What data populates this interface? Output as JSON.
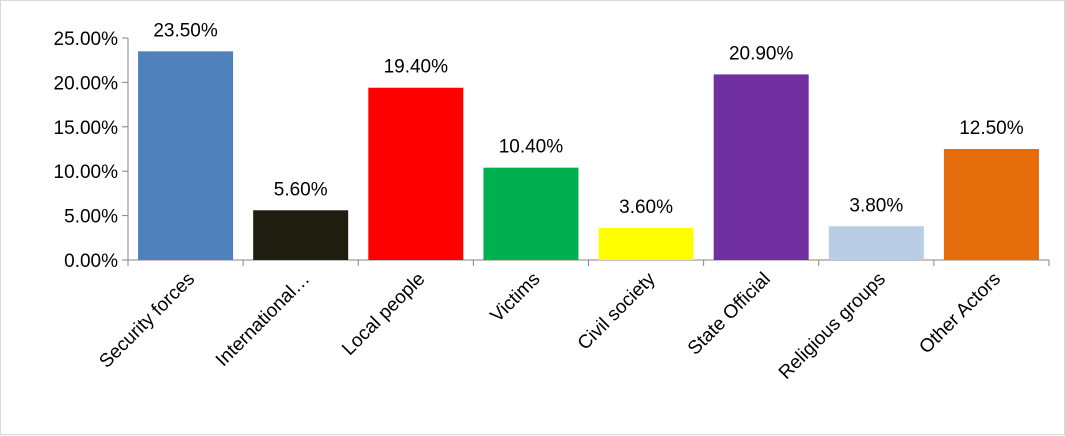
{
  "chart_data": {
    "type": "bar",
    "categories": [
      "Security forces",
      "International…",
      "Local people",
      "Victims",
      "Civil society",
      "State Official",
      "Religious groups",
      "Other Actors"
    ],
    "values": [
      23.5,
      5.6,
      19.4,
      10.4,
      3.6,
      20.9,
      3.8,
      12.5
    ],
    "value_labels": [
      "23.50%",
      "5.60%",
      "19.40%",
      "10.40%",
      "3.60%",
      "20.90%",
      "3.80%",
      "12.50%"
    ],
    "colors": [
      "#4f81bd",
      "#1f1c10",
      "#ff0000",
      "#00b050",
      "#ffff00",
      "#7030a0",
      "#b9cde5",
      "#e46c0a"
    ],
    "y_ticks": [
      "0.00%",
      "5.00%",
      "10.00%",
      "15.00%",
      "20.00%",
      "25.00%"
    ],
    "ylim": [
      0,
      25
    ],
    "title": "",
    "xlabel": "",
    "ylabel": "",
    "grid": false,
    "legend": "none"
  }
}
